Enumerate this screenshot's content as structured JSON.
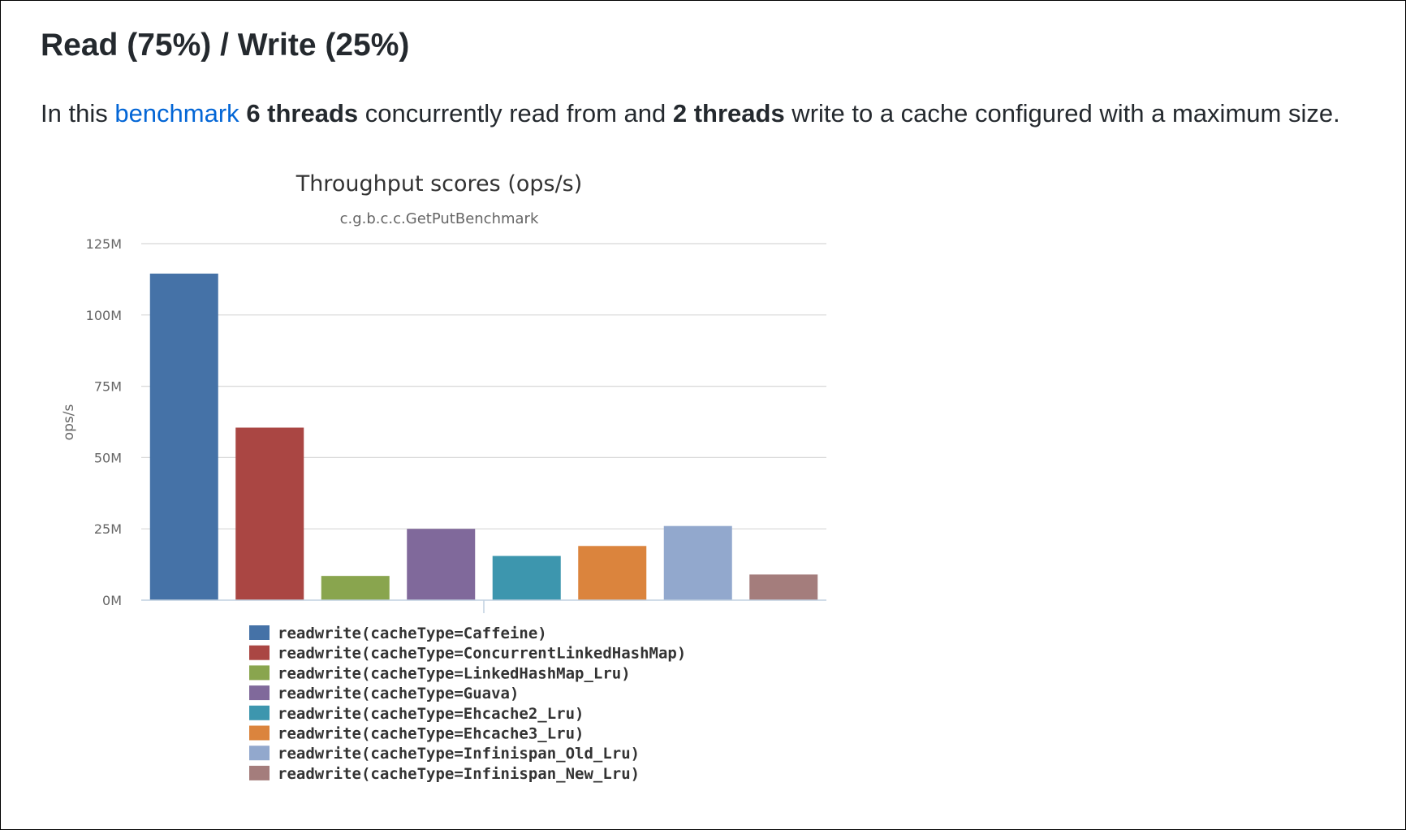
{
  "page": {
    "heading": "Read (75%) / Write (25%)",
    "intro": {
      "prefix": "In this ",
      "link": "benchmark",
      "mid1": " ",
      "threads_read": "6 threads",
      "mid2": " concurrently read from and ",
      "threads_write": "2 threads",
      "suffix": " write to a cache configured with a maximum size."
    },
    "link_color": "#0366d6"
  },
  "chart_data": {
    "type": "bar",
    "title": "Throughput scores (ops/s)",
    "subtitle": "c.g.b.c.c.GetPutBenchmark",
    "ylabel": "ops/s",
    "xlabel": "",
    "ylim": [
      0,
      125000000
    ],
    "yticks": [
      0,
      25000000,
      50000000,
      75000000,
      100000000,
      125000000
    ],
    "ytick_labels": [
      "0M",
      "25M",
      "50M",
      "75M",
      "100M",
      "125M"
    ],
    "grid": true,
    "legend": "bottom",
    "series": [
      {
        "name": "readwrite(cacheType=Caffeine)",
        "value": 114500000,
        "color": "#4572a7"
      },
      {
        "name": "readwrite(cacheType=ConcurrentLinkedHashMap)",
        "value": 60500000,
        "color": "#aa4643"
      },
      {
        "name": "readwrite(cacheType=LinkedHashMap_Lru)",
        "value": 8500000,
        "color": "#89a54e"
      },
      {
        "name": "readwrite(cacheType=Guava)",
        "value": 25000000,
        "color": "#80699b"
      },
      {
        "name": "readwrite(cacheType=Ehcache2_Lru)",
        "value": 15500000,
        "color": "#3d96ae"
      },
      {
        "name": "readwrite(cacheType=Ehcache3_Lru)",
        "value": 19000000,
        "color": "#db843d"
      },
      {
        "name": "readwrite(cacheType=Infinispan_Old_Lru)",
        "value": 26000000,
        "color": "#92a8cd"
      },
      {
        "name": "readwrite(cacheType=Infinispan_New_Lru)",
        "value": 9000000,
        "color": "#a47d7c"
      }
    ]
  }
}
